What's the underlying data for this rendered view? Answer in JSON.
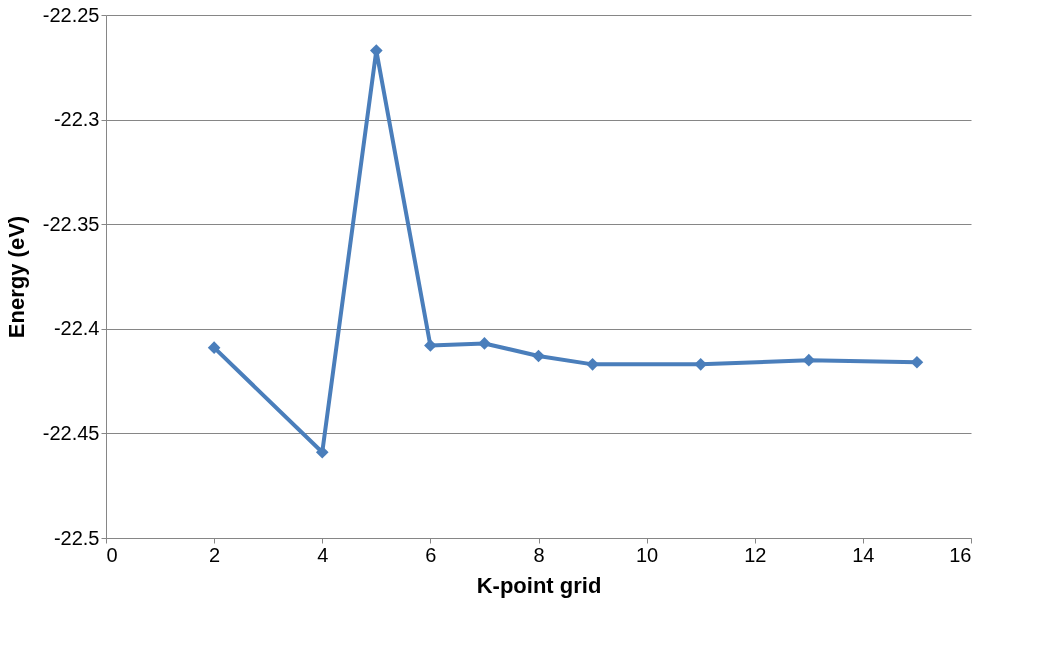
{
  "chart_data": {
    "type": "line",
    "xlabel": "K-point grid",
    "ylabel": "Energy (eV)",
    "x": [
      2,
      4,
      5,
      6,
      7,
      8,
      9,
      11,
      13,
      15
    ],
    "series": [
      {
        "color": "#4a7ebb",
        "values": [
          -22.409,
          -22.459,
          -22.267,
          -22.408,
          -22.407,
          -22.413,
          -22.417,
          -22.417,
          -22.415,
          -22.416
        ]
      }
    ],
    "xlim": [
      0,
      16
    ],
    "xticks": [
      0,
      2,
      4,
      6,
      8,
      10,
      12,
      14,
      16
    ],
    "ylim": [
      -22.5,
      -22.25
    ],
    "yticks": [
      -22.5,
      -22.45,
      -22.4,
      -22.35,
      -22.3,
      -22.25
    ],
    "grid": "y",
    "marker": "diamond",
    "line_style": "solid"
  }
}
